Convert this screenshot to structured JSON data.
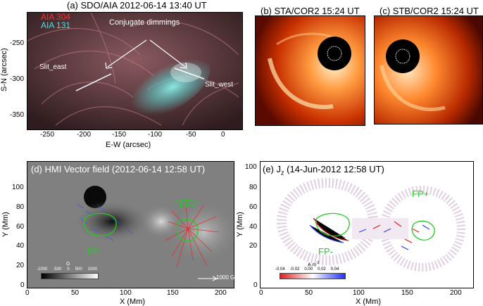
{
  "panel_a": {
    "title": "(a) SDO/AIA 2012-06-14 13:40 UT",
    "legend": [
      "AIA 304",
      "AIA 131"
    ],
    "legend_colors": [
      "#ff3030",
      "#38e6e6"
    ],
    "annotation": "Conjugate dimmings",
    "slit_east": "Slit_east",
    "slit_west": "Slit_west",
    "xlabel": "E-W (arcsec)",
    "ylabel": "S-N (arcsec)",
    "xticks": [
      "-250",
      "-200",
      "-150",
      "-100",
      "-50",
      "0"
    ],
    "yticks": [
      "-250",
      "-300",
      "-350"
    ]
  },
  "panel_b": {
    "title": "(b) STA/COR2 15:24 UT"
  },
  "panel_c": {
    "title": "(c) STB/COR2 15:24 UT"
  },
  "panel_d": {
    "title": "(d) HMI Vector field (2012-06-14 12:58 UT)",
    "fp_plus": "FP+",
    "fp_minus": "FP-",
    "colorbar_unit": "G",
    "colorbar_ticks": [
      "-1000",
      "-500",
      "0",
      "500",
      "1000"
    ],
    "arrow_label": "1000 G",
    "xlabel": "X (Mm)",
    "ylabel": "Y (Mm)",
    "xticks": [
      "0",
      "50",
      "100",
      "150",
      "200"
    ],
    "yticks": [
      "100",
      "80",
      "60",
      "40",
      "20",
      "0"
    ]
  },
  "panel_e": {
    "title": "(e) J",
    "title_sub": "z",
    "title_rest": " (14-Jun-2012 12:58 UT)",
    "fp_plus": "FP+",
    "fp_minus": "FP-",
    "colorbar_unit": "A m",
    "colorbar_unit_sup": "-2",
    "colorbar_ticks": [
      "-0.04",
      "-0.02",
      "0.00",
      "0.02",
      "0.04"
    ],
    "xlabel": "X (Mm)",
    "ylabel": "Y (Mm)",
    "xticks": [
      "0",
      "50",
      "100",
      "150",
      "200"
    ],
    "yticks": [
      "100",
      "80",
      "60",
      "40",
      "20",
      "0"
    ]
  }
}
